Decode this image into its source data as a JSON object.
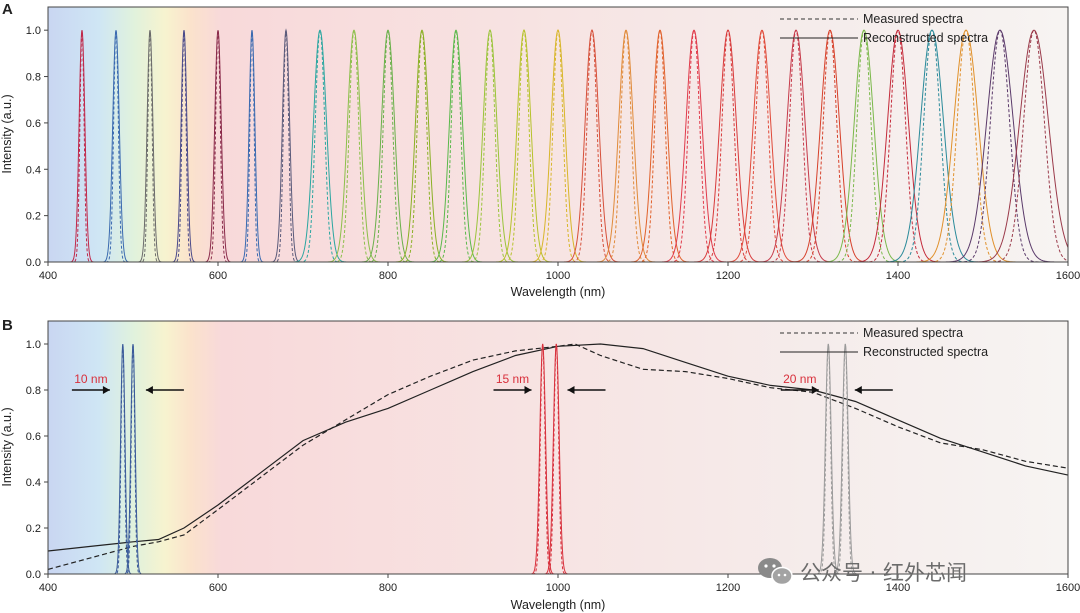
{
  "figure": {
    "colors": {
      "measured_default": "#333333",
      "reconstructed_default": "#222222",
      "peak_10nm": "#3a5a9a",
      "peak_15nm": "#d8303c",
      "peak_20nm": "#9a9a9a",
      "annotation_text": "#d8303c",
      "arrow": "#111111"
    },
    "watermark": "公众号 · 红外芯闻",
    "watermark_icon": "wechat-icon"
  },
  "chart_data": [
    {
      "panel_label": "A",
      "type": "line",
      "xlabel": "Wavelength (nm)",
      "ylabel": "Intensity (a.u.)",
      "xlim": [
        400,
        1600
      ],
      "ylim": [
        0,
        1.1
      ],
      "xticks": [
        "400",
        "600",
        "800",
        "1000",
        "1200",
        "1400",
        "1600"
      ],
      "yticks": [
        "0.0",
        "0.2",
        "0.4",
        "0.6",
        "0.8",
        "1.0"
      ],
      "legend": {
        "placement": "top-right",
        "entries": [
          {
            "label": "Measured spectra",
            "style": "dashed"
          },
          {
            "label": "Reconstructed spectra",
            "style": "solid"
          }
        ]
      },
      "background": "visible-to-infrared color gradient",
      "peak_centers_nm": [
        440,
        480,
        520,
        560,
        600,
        640,
        680,
        720,
        760,
        800,
        840,
        880,
        920,
        960,
        1000,
        1040,
        1080,
        1120,
        1160,
        1200,
        1240,
        1280,
        1320,
        1360,
        1400,
        1440,
        1480,
        1520,
        1560
      ],
      "peak_fwhm_nm": [
        8,
        9,
        8,
        8,
        9,
        8,
        10,
        18,
        18,
        18,
        18,
        18,
        19,
        19,
        19,
        19,
        20,
        20,
        22,
        23,
        24,
        25,
        26,
        27,
        29,
        32,
        34,
        37,
        40
      ],
      "peak_colors": [
        "#c0284a",
        "#3a6ab0",
        "#6b6b6b",
        "#4a4a8a",
        "#8a2a4a",
        "#3a6ab0",
        "#5a5a7a",
        "#2aa6a0",
        "#8cbf4a",
        "#6ab04a",
        "#8ab024",
        "#5ab84a",
        "#9ac43a",
        "#b6c22a",
        "#d8b62a",
        "#d6503a",
        "#e08a3a",
        "#e0602a",
        "#e03a4a",
        "#d83a3a",
        "#e04a3a",
        "#c63a4a",
        "#d6402a",
        "#7ab84a",
        "#c42a3a",
        "#2a8a9a",
        "#e0902a",
        "#5a3a6a",
        "#9a3a4a"
      ],
      "peak_max": 1.0
    },
    {
      "panel_label": "B",
      "type": "line",
      "xlabel": "Wavelength (nm)",
      "ylabel": "Intensity (a.u.)",
      "xlim": [
        400,
        1600
      ],
      "ylim": [
        0,
        1.1
      ],
      "xticks": [
        "400",
        "600",
        "800",
        "1000",
        "1200",
        "1400",
        "1600"
      ],
      "yticks": [
        "0.0",
        "0.2",
        "0.4",
        "0.6",
        "0.8",
        "1.0"
      ],
      "legend": {
        "placement": "top-right",
        "entries": [
          {
            "label": "Measured spectra",
            "style": "dashed"
          },
          {
            "label": "Reconstructed spectra",
            "style": "solid"
          }
        ]
      },
      "series": [
        {
          "style": "solid",
          "color": "#222222",
          "x": [
            400,
            450,
            500,
            530,
            560,
            600,
            650,
            700,
            750,
            800,
            850,
            900,
            950,
            1000,
            1050,
            1100,
            1150,
            1200,
            1250,
            1300,
            1350,
            1400,
            1450,
            1500,
            1550,
            1600
          ],
          "y": [
            0.1,
            0.12,
            0.14,
            0.15,
            0.2,
            0.3,
            0.44,
            0.58,
            0.66,
            0.72,
            0.8,
            0.88,
            0.95,
            0.99,
            1.0,
            0.98,
            0.92,
            0.86,
            0.82,
            0.8,
            0.75,
            0.67,
            0.59,
            0.53,
            0.47,
            0.43
          ]
        },
        {
          "style": "dashed",
          "color": "#222222",
          "x": [
            400,
            450,
            500,
            530,
            560,
            600,
            650,
            700,
            750,
            800,
            850,
            900,
            950,
            1000,
            1020,
            1050,
            1100,
            1150,
            1200,
            1250,
            1300,
            1350,
            1400,
            1450,
            1500,
            1550,
            1600
          ],
          "y": [
            0.02,
            0.07,
            0.12,
            0.14,
            0.17,
            0.28,
            0.42,
            0.56,
            0.67,
            0.78,
            0.86,
            0.93,
            0.97,
            0.99,
            1.0,
            0.95,
            0.89,
            0.88,
            0.85,
            0.81,
            0.79,
            0.72,
            0.64,
            0.57,
            0.54,
            0.49,
            0.46
          ]
        }
      ],
      "peaks": [
        {
          "label": "10 nm",
          "color": "#3a5a9a",
          "centers": [
            488,
            500
          ],
          "fwhm": 6,
          "max": 1.0
        },
        {
          "label": "15 nm",
          "color": "#d8303c",
          "centers": [
            982,
            998
          ],
          "fwhm": 8,
          "max": 1.0
        },
        {
          "label": "20 nm",
          "color": "#9a9a9a",
          "centers": [
            1318,
            1338
          ],
          "fwhm": 8,
          "max": 1.0
        }
      ]
    }
  ]
}
